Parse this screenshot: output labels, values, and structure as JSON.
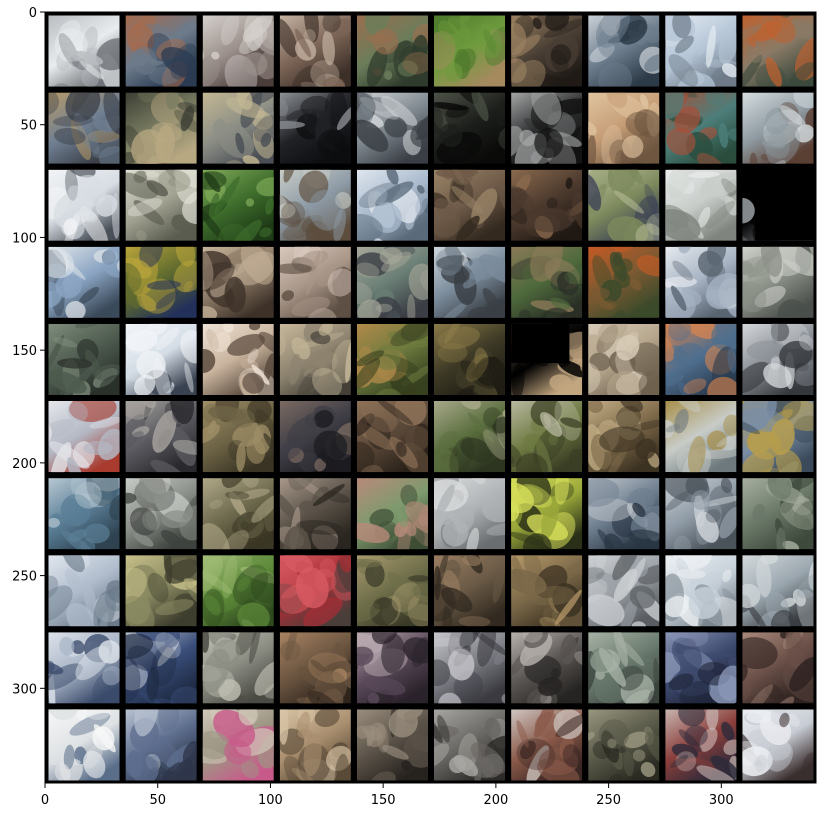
{
  "image": {
    "kind": "matplotlib imshow of a 10x10 grid of generated sample images",
    "grid_rows": 10,
    "grid_cols": 10,
    "frame_color": "#000000",
    "background": "#ffffff"
  },
  "axes": {
    "x_ticks": [
      {
        "value": 0,
        "label": "0"
      },
      {
        "value": 50,
        "label": "50"
      },
      {
        "value": 100,
        "label": "100"
      },
      {
        "value": 150,
        "label": "150"
      },
      {
        "value": 200,
        "label": "200"
      },
      {
        "value": 250,
        "label": "250"
      },
      {
        "value": 300,
        "label": "300"
      }
    ],
    "y_ticks": [
      {
        "value": 0,
        "label": "0"
      },
      {
        "value": 50,
        "label": "50"
      },
      {
        "value": 100,
        "label": "100"
      },
      {
        "value": 150,
        "label": "150"
      },
      {
        "value": 200,
        "label": "200"
      },
      {
        "value": 250,
        "label": "250"
      },
      {
        "value": 300,
        "label": "300"
      }
    ],
    "xlim": [
      0,
      342
    ],
    "ylim": [
      0,
      342
    ]
  },
  "tiles": [
    {
      "a": "#e9ecee",
      "b": "#b9bcc0",
      "c": "#6f7377"
    },
    {
      "a": "#6c7a8a",
      "b": "#a56b4e",
      "c": "#2b3b52"
    },
    {
      "a": "#9a8f8a",
      "b": "#d5d0cc",
      "c": "#4a3d3a"
    },
    {
      "a": "#7b6456",
      "b": "#c4b2a1",
      "c": "#3c2f28"
    },
    {
      "a": "#6a7d5a",
      "b": "#9a6e4f",
      "c": "#2f3b2c"
    },
    {
      "a": "#6f9b3e",
      "b": "#4d7a2c",
      "c": "#a48a5e"
    },
    {
      "a": "#4a3f35",
      "b": "#9c8262",
      "c": "#1f1a16"
    },
    {
      "a": "#6e7e8e",
      "b": "#c9d0d6",
      "c": "#2d3b48"
    },
    {
      "a": "#b7c7d8",
      "b": "#e5ecf2",
      "c": "#6e7b88"
    },
    {
      "a": "#8a7a66",
      "b": "#c0612e",
      "c": "#3c4a3e"
    },
    {
      "a": "#6f7f92",
      "b": "#b79a6a",
      "c": "#3b4048"
    },
    {
      "a": "#7a7d62",
      "b": "#3c3e34",
      "c": "#b8a882"
    },
    {
      "a": "#8d8f86",
      "b": "#c4b894",
      "c": "#4b4f55"
    },
    {
      "a": "#202226",
      "b": "#8d9095",
      "c": "#0c0d0f"
    },
    {
      "a": "#7e878e",
      "b": "#cfd3d6",
      "c": "#3a3f45"
    },
    {
      "a": "#1d1f1c",
      "b": "#4d5247",
      "c": "#0a0b09"
    },
    {
      "a": "#2c2d2e",
      "b": "#a4a6a6",
      "c": "#121212"
    },
    {
      "a": "#c59d76",
      "b": "#e0c5a1",
      "c": "#6e5640"
    },
    {
      "a": "#4d7e7a",
      "b": "#a6503a",
      "c": "#2a4d3e"
    },
    {
      "a": "#8e9aa1",
      "b": "#d6dde0",
      "c": "#5a3f33"
    },
    {
      "a": "#d8dde3",
      "b": "#f2f4f6",
      "c": "#4a5058"
    },
    {
      "a": "#a2a392",
      "b": "#e0e0d6",
      "c": "#5a5c4f"
    },
    {
      "a": "#3e6d2c",
      "b": "#7faa58",
      "c": "#1e3a16"
    },
    {
      "a": "#8d9aa6",
      "b": "#c8ccc6",
      "c": "#5c4d3d"
    },
    {
      "a": "#a8b9cc",
      "b": "#dfe6ee",
      "c": "#5a6a7a"
    },
    {
      "a": "#6e5a48",
      "b": "#9a8468",
      "c": "#33291f"
    },
    {
      "a": "#4c3a2e",
      "b": "#8a6a4e",
      "c": "#1f1813"
    },
    {
      "a": "#7d8a5c",
      "b": "#bfc3a0",
      "c": "#3a3f55"
    },
    {
      "a": "#c9cdca",
      "b": "#e8ebea",
      "c": "#7f857e"
    },
    {
      "a": "#000000",
      "b": "#000000",
      "c": "#c7ced6",
      "blackout": "right"
    },
    {
      "a": "#8aa4c2",
      "b": "#dfe5ea",
      "c": "#3b4a5a"
    },
    {
      "a": "#5e6a2e",
      "b": "#b9a43a",
      "c": "#23305a"
    },
    {
      "a": "#8b7a66",
      "b": "#c7b39a",
      "c": "#3d3128"
    },
    {
      "a": "#a89688",
      "b": "#d8c8bd",
      "c": "#5e4f44"
    },
    {
      "a": "#6b7f76",
      "b": "#a7a89a",
      "c": "#3b3e45"
    },
    {
      "a": "#7b8c9c",
      "b": "#cfd6dc",
      "c": "#3a3f45"
    },
    {
      "a": "#4e6a3c",
      "b": "#8a7a58",
      "c": "#2a2f26"
    },
    {
      "a": "#7a5a32",
      "b": "#c65a24",
      "c": "#3b4a2a"
    },
    {
      "a": "#a7b3c3",
      "b": "#e6eaef",
      "c": "#5a6572"
    },
    {
      "a": "#8c9188",
      "b": "#cfd1cb",
      "c": "#4a4f4b"
    },
    {
      "a": "#4d5a4e",
      "b": "#7e8d7c",
      "c": "#2a302a"
    },
    {
      "a": "#d4dde6",
      "b": "#f2f5f8",
      "c": "#3a4250"
    },
    {
      "a": "#c9b49e",
      "b": "#efe3d6",
      "c": "#5a4b3e"
    },
    {
      "a": "#8e8470",
      "b": "#c6b89a",
      "c": "#444038"
    },
    {
      "a": "#6d7a3e",
      "b": "#b18a4a",
      "c": "#37401f"
    },
    {
      "a": "#3e3a26",
      "b": "#8a7a48",
      "c": "#1f1d14"
    },
    {
      "a": "#000000",
      "b": "#7d6a55",
      "c": "#c2a680",
      "blackout": "topleft"
    },
    {
      "a": "#b5a58c",
      "b": "#d8ccb8",
      "c": "#6e6250"
    },
    {
      "a": "#4f6e8e",
      "b": "#d8844e",
      "c": "#2a3b4e"
    },
    {
      "a": "#8a8f96",
      "b": "#d4d7da",
      "c": "#35383c"
    },
    {
      "a": "#b3b8c4",
      "b": "#e5e7eb",
      "c": "#a83a2e"
    },
    {
      "a": "#5a5a60",
      "b": "#a7a4a0",
      "c": "#2a2a2e"
    },
    {
      "a": "#6e6446",
      "b": "#9e8e66",
      "c": "#3a3424"
    },
    {
      "a": "#3f3e46",
      "b": "#7a6a62",
      "c": "#1c1b20"
    },
    {
      "a": "#5a4838",
      "b": "#8e7258",
      "c": "#2b221a"
    },
    {
      "a": "#5a6e3e",
      "b": "#a8a88a",
      "c": "#2d3520"
    },
    {
      "a": "#6e7a42",
      "b": "#b8b8a0",
      "c": "#3a3e24"
    },
    {
      "a": "#7e6a4a",
      "b": "#c3ae86",
      "c": "#3c3222"
    },
    {
      "a": "#c8ccc8",
      "b": "#a68e48",
      "c": "#6e7a7e"
    },
    {
      "a": "#7a8ea6",
      "b": "#b89e4a",
      "c": "#3a4a5a"
    },
    {
      "a": "#5a7e96",
      "b": "#b8c8d2",
      "c": "#2e4250"
    },
    {
      "a": "#8a8e88",
      "b": "#c8ccc6",
      "c": "#3e423e"
    },
    {
      "a": "#6e6a4e",
      "b": "#b0a888",
      "c": "#3a3624"
    },
    {
      "a": "#5a5248",
      "b": "#a8988a",
      "c": "#2a2620"
    },
    {
      "a": "#7e9a6e",
      "b": "#b88a7a",
      "c": "#3e4e36"
    },
    {
      "a": "#b0b4b6",
      "b": "#dadcdd",
      "c": "#6a6e70"
    },
    {
      "a": "#9aa83a",
      "b": "#d8e05a",
      "c": "#2a3018"
    },
    {
      "a": "#6e7e8e",
      "b": "#c4cad0",
      "c": "#2a3644"
    },
    {
      "a": "#8f9ba6",
      "b": "#cdd3d8",
      "c": "#4a525a"
    },
    {
      "a": "#6a7868",
      "b": "#a8b0a0",
      "c": "#3e4a3c"
    },
    {
      "a": "#b0bccc",
      "b": "#e0e6ee",
      "c": "#6a7a8a"
    },
    {
      "a": "#8a8a62",
      "b": "#c8c08a",
      "c": "#3e3e2e"
    },
    {
      "a": "#5e8a3a",
      "b": "#a6c07a",
      "c": "#2e4a1e"
    },
    {
      "a": "#a62e36",
      "b": "#d85a62",
      "c": "#4a3e3a"
    },
    {
      "a": "#6e6e4a",
      "b": "#a89a6e",
      "c": "#3a3a28"
    },
    {
      "a": "#6a5a46",
      "b": "#9a7e62",
      "c": "#322a20"
    },
    {
      "a": "#7a6848",
      "b": "#b89a6a",
      "c": "#3c3222"
    },
    {
      "a": "#9aa0a6",
      "b": "#cfd2d5",
      "c": "#5a5e62"
    },
    {
      "a": "#c8d2da",
      "b": "#eef1f4",
      "c": "#7a868e"
    },
    {
      "a": "#9aa6ae",
      "b": "#d4dadc",
      "c": "#3a3e42"
    },
    {
      "a": "#a8b4c6",
      "b": "#dde3ea",
      "c": "#3a4a6a"
    },
    {
      "a": "#3a4e7a",
      "b": "#b8c0cc",
      "c": "#1e2a42"
    },
    {
      "a": "#8a8c82",
      "b": "#c2c2b6",
      "c": "#4a4a44"
    },
    {
      "a": "#6a5440",
      "b": "#a88462",
      "c": "#2e241c"
    },
    {
      "a": "#5a4a5a",
      "b": "#b8a8ae",
      "c": "#2a222a"
    },
    {
      "a": "#7e7e86",
      "b": "#c6c6cc",
      "c": "#3a3a40"
    },
    {
      "a": "#5a5654",
      "b": "#b8b2ae",
      "c": "#262422"
    },
    {
      "a": "#6a7a6e",
      "b": "#a8b2a6",
      "c": "#3a423c"
    },
    {
      "a": "#3e4a6e",
      "b": "#8a96b6",
      "c": "#1e2438"
    },
    {
      "a": "#6a5048",
      "b": "#a8887a",
      "c": "#2e2220"
    },
    {
      "a": "#dfe2e4",
      "b": "#f6f7f8",
      "c": "#5a6e8a"
    },
    {
      "a": "#5e6e8e",
      "b": "#b8c2d2",
      "c": "#2e364a"
    },
    {
      "a": "#9e9684",
      "b": "#d0c8b8",
      "c": "#c85a8a"
    },
    {
      "a": "#a88e6e",
      "b": "#d8c4a6",
      "c": "#5a4a38"
    },
    {
      "a": "#5a5248",
      "b": "#9a8e7e",
      "c": "#26221e"
    },
    {
      "a": "#6a6864",
      "b": "#a8a6a2",
      "c": "#2e2c2a"
    },
    {
      "a": "#8a5a4a",
      "b": "#cfc6c2",
      "c": "#3a2622"
    },
    {
      "a": "#5a5a4a",
      "b": "#98967e",
      "c": "#2a2a22"
    },
    {
      "a": "#8a3e3a",
      "b": "#c8b4b0",
      "c": "#2e2a3a"
    },
    {
      "a": "#c8ccd4",
      "b": "#eceef2",
      "c": "#3a2e2e"
    }
  ]
}
